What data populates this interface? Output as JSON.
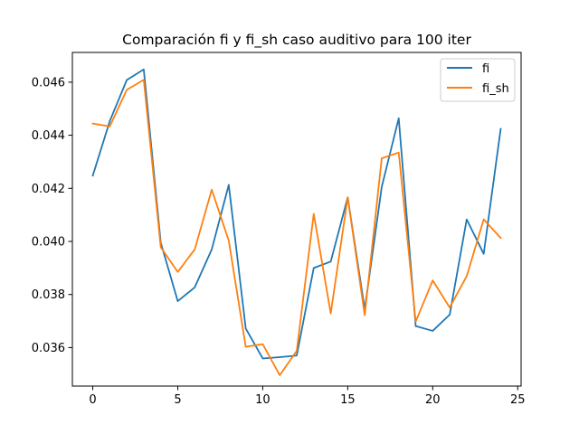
{
  "chart_data": {
    "type": "line",
    "title": "Comparación fi y fi_sh caso auditivo para 100 iter",
    "xlabel": "",
    "ylabel": "",
    "x": [
      0,
      1,
      2,
      3,
      4,
      5,
      6,
      7,
      8,
      9,
      10,
      11,
      12,
      13,
      14,
      15,
      16,
      17,
      18,
      19,
      20,
      21,
      22,
      23,
      24
    ],
    "xlim": [
      -1.2,
      25.2
    ],
    "ylim": [
      0.03455,
      0.04712
    ],
    "xticks": [
      0,
      5,
      10,
      15,
      20,
      25
    ],
    "xtick_labels": [
      "0",
      "5",
      "10",
      "15",
      "20",
      "25"
    ],
    "yticks": [
      0.036,
      0.038,
      0.04,
      0.042,
      0.044,
      0.046
    ],
    "ytick_labels": [
      "0.036",
      "0.038",
      "0.040",
      "0.042",
      "0.044",
      "0.046"
    ],
    "legend_position": "upper-right",
    "series": [
      {
        "name": "fi",
        "color": "#1f77b4",
        "values": [
          0.04248,
          0.04453,
          0.04608,
          0.04648,
          0.03995,
          0.03775,
          0.03827,
          0.0397,
          0.04213,
          0.03672,
          0.03559,
          0.03564,
          0.0357,
          0.039,
          0.03924,
          0.04166,
          0.03744,
          0.04205,
          0.04464,
          0.03681,
          0.03663,
          0.03724,
          0.04083,
          0.03953,
          0.04424
        ]
      },
      {
        "name": "fi_sh",
        "color": "#ff7f0e",
        "values": [
          0.04444,
          0.04433,
          0.04571,
          0.04609,
          0.03978,
          0.03885,
          0.0397,
          0.04195,
          0.04003,
          0.03603,
          0.03613,
          0.03496,
          0.03588,
          0.04104,
          0.03729,
          0.04166,
          0.03722,
          0.04313,
          0.04335,
          0.03698,
          0.03853,
          0.03751,
          0.03869,
          0.04083,
          0.04013
        ]
      }
    ]
  }
}
